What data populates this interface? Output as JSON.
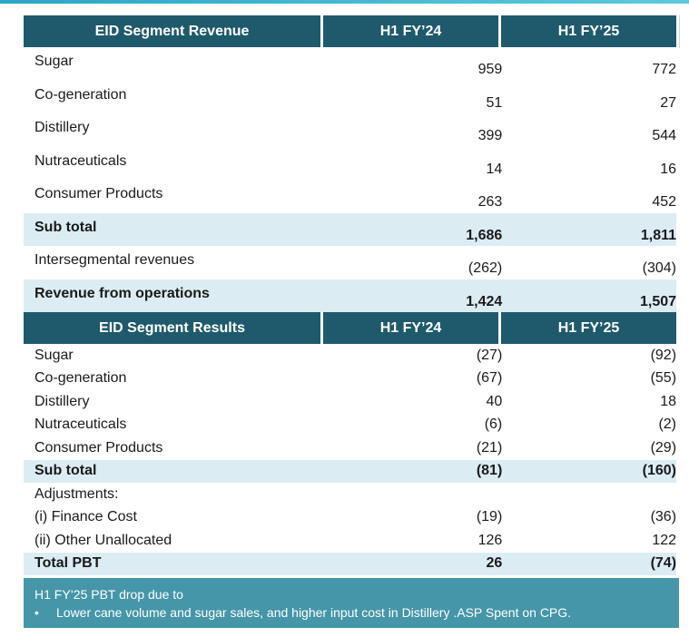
{
  "revenue": {
    "header": {
      "label": "EID Segment Revenue",
      "col1": "H1 FY’24",
      "col2": "H1 FY’25"
    },
    "rows": [
      {
        "label": "Sugar",
        "v1": "959",
        "v2": "772"
      },
      {
        "label": "Co-generation",
        "v1": "51",
        "v2": "27"
      },
      {
        "label": "Distillery",
        "v1": "399",
        "v2": "544"
      },
      {
        "label": "Nutraceuticals",
        "v1": "14",
        "v2": "16"
      },
      {
        "label": "Consumer Products",
        "v1": "263",
        "v2": "452"
      },
      {
        "label": "Sub total",
        "v1": "1,686",
        "v2": "1,811"
      },
      {
        "label": "Intersegmental revenues",
        "v1": "(262)",
        "v2": "(304)"
      },
      {
        "label": "Revenue from operations",
        "v1": "1,424",
        "v2": "1,507"
      }
    ]
  },
  "results": {
    "header": {
      "label": "EID Segment Results",
      "col1": "H1 FY’24",
      "col2": "H1 FY’25"
    },
    "rows": [
      {
        "label": "Sugar",
        "v1": "(27)",
        "v2": "(92)"
      },
      {
        "label": "Co-generation",
        "v1": "(67)",
        "v2": "(55)"
      },
      {
        "label": "Distillery",
        "v1": "40",
        "v2": "18"
      },
      {
        "label": "Nutraceuticals",
        "v1": "(6)",
        "v2": "(2)"
      },
      {
        "label": "Consumer Products",
        "v1": "(21)",
        "v2": "(29)"
      },
      {
        "label": "Sub total",
        "v1": "(81)",
        "v2": "(160)"
      },
      {
        "label": "Adjustments:",
        "v1": "",
        "v2": ""
      },
      {
        "label": "(i) Finance Cost",
        "v1": "(19)",
        "v2": "(36)"
      },
      {
        "label": "(ii) Other Unallocated",
        "v1": "126",
        "v2": "122"
      },
      {
        "label": "Total PBT",
        "v1": "26",
        "v2": "(74)"
      }
    ]
  },
  "note": {
    "title": "H1 FY’25 PBT drop due to",
    "bullet": "•",
    "text": "Lower cane volume and sugar sales, and higher input cost in Distillery .ASP Spent on CPG."
  },
  "colors": {
    "header_bg": "#1e5a6b",
    "shade_bg": "#dcecf3",
    "note_bg": "#4596a9",
    "accent_line": "#2aa6c7"
  }
}
